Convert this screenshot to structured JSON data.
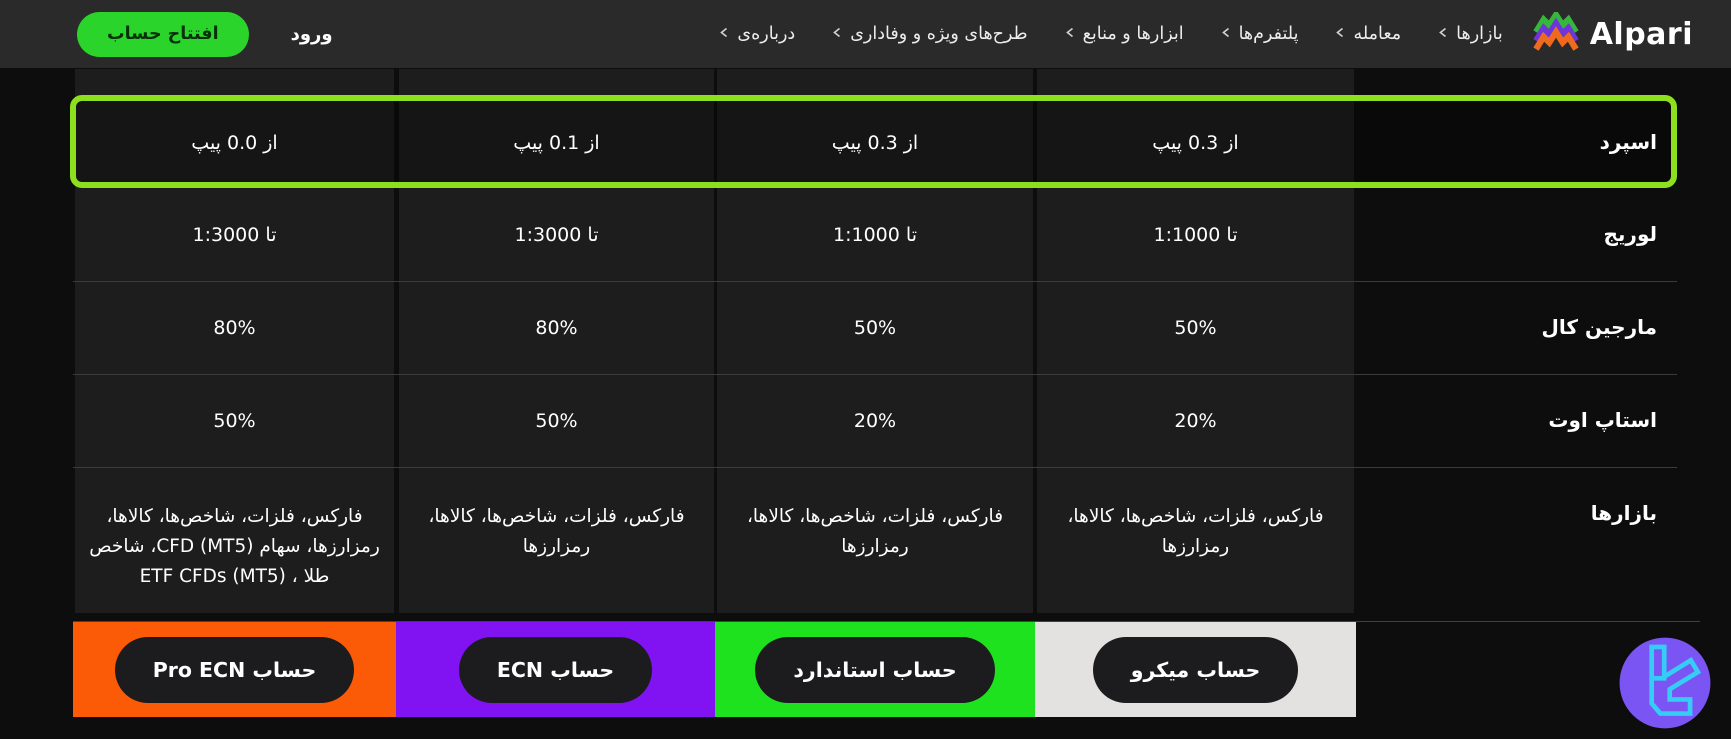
{
  "nav": {
    "brand": "Alpari",
    "items": [
      {
        "label": "بازارها"
      },
      {
        "label": "معامله"
      },
      {
        "label": "پلتفرم‌ها"
      },
      {
        "label": "ابزارها و منابع"
      },
      {
        "label": "طرح‌های ویژه و وفاداری"
      },
      {
        "label": "درباره‌ی"
      }
    ],
    "login_label": "ورود",
    "open_account_label": "افتتاح حساب"
  },
  "table": {
    "rows": [
      {
        "key": "spread",
        "label": "اسپرد",
        "highlighted": true,
        "values": [
          "از 0.3 پیپ",
          "از 0.3 پیپ",
          "از 0.1 پیپ",
          "از 0.0 پیپ"
        ]
      },
      {
        "key": "leverage",
        "label": "لوریج",
        "values": [
          "تا 1:1000",
          "تا 1:1000",
          "تا 1:3000",
          "تا 1:3000"
        ]
      },
      {
        "key": "margin-call",
        "label": "مارجین کال",
        "values": [
          "50%",
          "50%",
          "80%",
          "80%"
        ]
      },
      {
        "key": "stop-out",
        "label": "استاپ اوت",
        "values": [
          "20%",
          "20%",
          "50%",
          "50%"
        ]
      },
      {
        "key": "markets",
        "label": "بازارها",
        "values": [
          "فارکس، فلزات، شاخص‌ها، کالاها، رمزارزها",
          "فارکس، فلزات، شاخص‌ها، کالاها، رمزارزها",
          "فارکس، فلزات، شاخص‌ها، کالاها، رمزارزها",
          "فارکس، فلزات، شاخص‌ها، کالاها، رمزارزها، سهام CFD (MT5)، شاخص طلا ، ETF CFDs (MT5)"
        ]
      }
    ],
    "accounts": [
      {
        "key": "micro",
        "label": "حساب میکرو",
        "color": "#e3e2e0"
      },
      {
        "key": "standard",
        "label": "حساب استاندارد",
        "color": "#1ee21e"
      },
      {
        "key": "ecn",
        "label": "حساب ECN",
        "color": "#8112f2"
      },
      {
        "key": "pro-ecn",
        "label": "حساب Pro ECN",
        "color": "#fb5a07"
      }
    ]
  },
  "colors": {
    "nav_bg": "#2a2a2a",
    "page_bg": "#0d0d0d",
    "highlight_border": "#8ee01e",
    "open_account_btn": "#2bd42b",
    "badge_circle": "#7b55f3",
    "badge_glyph": "#35ccf6",
    "logo_green": "#36b63c",
    "logo_purple": "#6d35da",
    "logo_orange": "#ef6a1c"
  }
}
